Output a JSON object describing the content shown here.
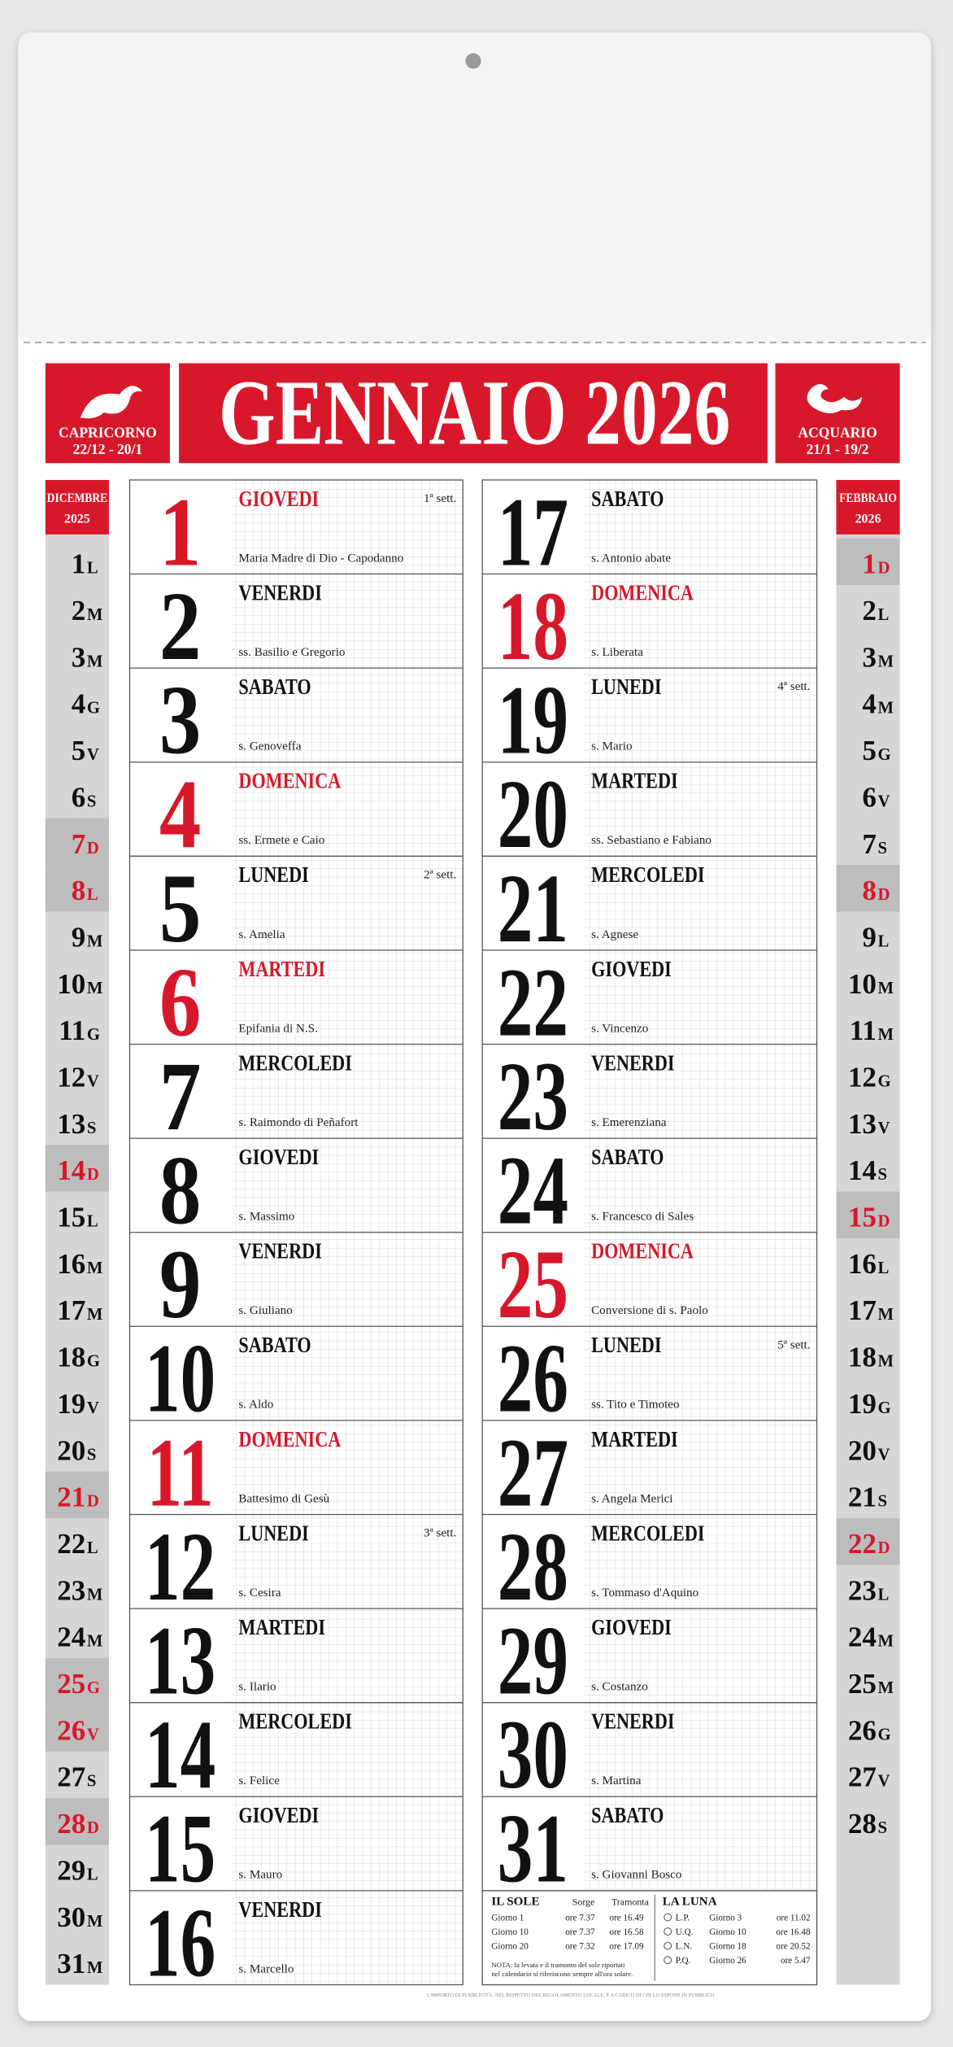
{
  "header": {
    "title": "GENNAIO 2026",
    "sign_left": {
      "name": "CAPRICORNO",
      "dates": "22/12 - 20/1"
    },
    "sign_right": {
      "name": "ACQUARIO",
      "dates": "21/1 - 19/2"
    }
  },
  "prev_month": {
    "month": "DICEMBRE",
    "year": "2025",
    "days": [
      {
        "day": 1,
        "letter": "L"
      },
      {
        "day": 2,
        "letter": "M"
      },
      {
        "day": 3,
        "letter": "M"
      },
      {
        "day": 4,
        "letter": "G"
      },
      {
        "day": 5,
        "letter": "V"
      },
      {
        "day": 6,
        "letter": "S"
      },
      {
        "day": 7,
        "letter": "D",
        "holiday": true
      },
      {
        "day": 8,
        "letter": "L",
        "holiday": true
      },
      {
        "day": 9,
        "letter": "M"
      },
      {
        "day": 10,
        "letter": "M"
      },
      {
        "day": 11,
        "letter": "G"
      },
      {
        "day": 12,
        "letter": "V"
      },
      {
        "day": 13,
        "letter": "S"
      },
      {
        "day": 14,
        "letter": "D",
        "holiday": true
      },
      {
        "day": 15,
        "letter": "L"
      },
      {
        "day": 16,
        "letter": "M"
      },
      {
        "day": 17,
        "letter": "M"
      },
      {
        "day": 18,
        "letter": "G"
      },
      {
        "day": 19,
        "letter": "V"
      },
      {
        "day": 20,
        "letter": "S"
      },
      {
        "day": 21,
        "letter": "D",
        "holiday": true
      },
      {
        "day": 22,
        "letter": "L"
      },
      {
        "day": 23,
        "letter": "M"
      },
      {
        "day": 24,
        "letter": "M"
      },
      {
        "day": 25,
        "letter": "G",
        "holiday": true
      },
      {
        "day": 26,
        "letter": "V",
        "holiday": true
      },
      {
        "day": 27,
        "letter": "S"
      },
      {
        "day": 28,
        "letter": "D",
        "holiday": true
      },
      {
        "day": 29,
        "letter": "L"
      },
      {
        "day": 30,
        "letter": "M"
      },
      {
        "day": 31,
        "letter": "M"
      }
    ]
  },
  "next_month": {
    "month": "FEBBRAIO",
    "year": "2026",
    "days": [
      {
        "day": 1,
        "letter": "D",
        "holiday": true
      },
      {
        "day": 2,
        "letter": "L"
      },
      {
        "day": 3,
        "letter": "M"
      },
      {
        "day": 4,
        "letter": "M"
      },
      {
        "day": 5,
        "letter": "G"
      },
      {
        "day": 6,
        "letter": "V"
      },
      {
        "day": 7,
        "letter": "S"
      },
      {
        "day": 8,
        "letter": "D",
        "holiday": true
      },
      {
        "day": 9,
        "letter": "L"
      },
      {
        "day": 10,
        "letter": "M"
      },
      {
        "day": 11,
        "letter": "M"
      },
      {
        "day": 12,
        "letter": "G"
      },
      {
        "day": 13,
        "letter": "V"
      },
      {
        "day": 14,
        "letter": "S"
      },
      {
        "day": 15,
        "letter": "D",
        "holiday": true
      },
      {
        "day": 16,
        "letter": "L"
      },
      {
        "day": 17,
        "letter": "M"
      },
      {
        "day": 18,
        "letter": "M"
      },
      {
        "day": 19,
        "letter": "G"
      },
      {
        "day": 20,
        "letter": "V"
      },
      {
        "day": 21,
        "letter": "S"
      },
      {
        "day": 22,
        "letter": "D",
        "holiday": true
      },
      {
        "day": 23,
        "letter": "L"
      },
      {
        "day": 24,
        "letter": "M"
      },
      {
        "day": 25,
        "letter": "M"
      },
      {
        "day": 26,
        "letter": "G"
      },
      {
        "day": 27,
        "letter": "V"
      },
      {
        "day": 28,
        "letter": "S"
      }
    ]
  },
  "days": [
    {
      "day": 1,
      "weekday": "GIOVEDI",
      "saint": "Maria Madre di Dio - Capodanno",
      "week": "1ª sett.",
      "holiday": true
    },
    {
      "day": 2,
      "weekday": "VENERDI",
      "saint": "ss. Basilio e Gregorio"
    },
    {
      "day": 3,
      "weekday": "SABATO",
      "saint": "s. Genoveffa"
    },
    {
      "day": 4,
      "weekday": "DOMENICA",
      "saint": "ss. Ermete e Caio",
      "holiday": true
    },
    {
      "day": 5,
      "weekday": "LUNEDI",
      "saint": "s. Amelia",
      "week": "2ª sett."
    },
    {
      "day": 6,
      "weekday": "MARTEDI",
      "saint": "Epifania di N.S.",
      "holiday": true
    },
    {
      "day": 7,
      "weekday": "MERCOLEDI",
      "saint": "s. Raimondo di Peñafort"
    },
    {
      "day": 8,
      "weekday": "GIOVEDI",
      "saint": "s. Massimo"
    },
    {
      "day": 9,
      "weekday": "VENERDI",
      "saint": "s. Giuliano"
    },
    {
      "day": 10,
      "weekday": "SABATO",
      "saint": "s. Aldo"
    },
    {
      "day": 11,
      "weekday": "DOMENICA",
      "saint": "Battesimo di Gesù",
      "holiday": true
    },
    {
      "day": 12,
      "weekday": "LUNEDI",
      "saint": "s. Cesira",
      "week": "3ª sett."
    },
    {
      "day": 13,
      "weekday": "MARTEDI",
      "saint": "s. Ilario"
    },
    {
      "day": 14,
      "weekday": "MERCOLEDI",
      "saint": "s. Felice"
    },
    {
      "day": 15,
      "weekday": "GIOVEDI",
      "saint": "s. Mauro"
    },
    {
      "day": 16,
      "weekday": "VENERDI",
      "saint": "s. Marcello"
    },
    {
      "day": 17,
      "weekday": "SABATO",
      "saint": "s. Antonio abate"
    },
    {
      "day": 18,
      "weekday": "DOMENICA",
      "saint": "s. Liberata",
      "holiday": true
    },
    {
      "day": 19,
      "weekday": "LUNEDI",
      "saint": "s. Mario",
      "week": "4ª sett."
    },
    {
      "day": 20,
      "weekday": "MARTEDI",
      "saint": "ss. Sebastiano e Fabiano"
    },
    {
      "day": 21,
      "weekday": "MERCOLEDI",
      "saint": "s. Agnese"
    },
    {
      "day": 22,
      "weekday": "GIOVEDI",
      "saint": "s. Vincenzo"
    },
    {
      "day": 23,
      "weekday": "VENERDI",
      "saint": "s. Emerenziana"
    },
    {
      "day": 24,
      "weekday": "SABATO",
      "saint": "s. Francesco di Sales"
    },
    {
      "day": 25,
      "weekday": "DOMENICA",
      "saint": "Conversione di s. Paolo",
      "holiday": true
    },
    {
      "day": 26,
      "weekday": "LUNEDI",
      "saint": "ss. Tito e Timoteo",
      "week": "5ª sett."
    },
    {
      "day": 27,
      "weekday": "MARTEDI",
      "saint": "s. Angela Merici"
    },
    {
      "day": 28,
      "weekday": "MERCOLEDI",
      "saint": "s. Tommaso d'Aquino"
    },
    {
      "day": 29,
      "weekday": "GIOVEDI",
      "saint": "s. Costanzo"
    },
    {
      "day": 30,
      "weekday": "VENERDI",
      "saint": "s. Martina"
    },
    {
      "day": 31,
      "weekday": "SABATO",
      "saint": "s. Giovanni Bosco"
    }
  ],
  "sun": {
    "title": "IL SOLE",
    "rise_header": "Sorge",
    "set_header": "Tramonta",
    "rows": [
      [
        "Giorno  1",
        "ore 7.37",
        "ore 16.49"
      ],
      [
        "Giorno 10",
        "ore 7.37",
        "ore 16.58"
      ],
      [
        "Giorno 20",
        "ore 7.32",
        "ore 17.09"
      ]
    ],
    "note_1": "NOTA: la levata e il tramonto del sole riportati",
    "note_2": "nel calendario si riferiscono sempre all'ora solare."
  },
  "moon": {
    "title": "LA LUNA",
    "rows": [
      [
        "L.P.",
        "Giorno  3",
        "ore 11.02"
      ],
      [
        "U.Q.",
        "Giorno 10",
        "ore 16.48"
      ],
      [
        "L.N.",
        "Giorno 18",
        "ore 20.52"
      ],
      [
        "P.Q.",
        "Giorno 26",
        "ore 5.47"
      ]
    ]
  },
  "footer": "L'IMPORTO DI PUBBLICITÀ, NEL RISPETTO DEL REGOLAMENTO LOCALE, È A CARICO DI CHI LO ESPONE IN PUBBLICO"
}
